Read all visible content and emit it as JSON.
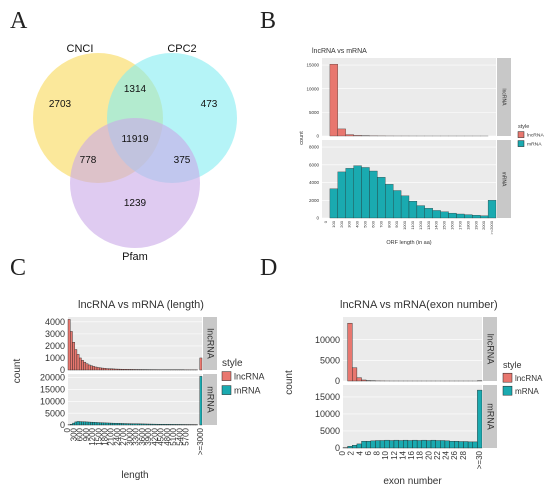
{
  "panel_labels": {
    "a": "A",
    "b": "B",
    "c": "C",
    "d": "D"
  },
  "chart_data": [
    {
      "type": "venn",
      "sets": [
        {
          "name": "CNCI",
          "color": "#f9e07a"
        },
        {
          "name": "CPC2",
          "color": "#84ecf2"
        },
        {
          "name": "Pfam",
          "color": "#c9a8e8"
        }
      ],
      "regions": {
        "cnci_only": "2703",
        "cpc2_only": "473",
        "pfam_only": "1239",
        "cnci_cpc2": "1314",
        "cnci_pfam": "778",
        "cpc2_pfam": "375",
        "all": "11919"
      }
    },
    {
      "type": "bar",
      "title": "lncRNA vs mRNA",
      "xlabel": "ORF length (in aa)",
      "ylabel": "count",
      "x": [
        "0",
        "100",
        "200",
        "300",
        "400",
        "500",
        "600",
        "700",
        "800",
        "900",
        "1000",
        "1100",
        "1200",
        "1300",
        "1400",
        "1500",
        "1600",
        "1700",
        "1800",
        "1900",
        "2000",
        ">=2000"
      ],
      "series": [
        {
          "name": "lncRNA",
          "color": "#e8776f",
          "values": [
            0,
            15200,
            1500,
            300,
            120,
            60,
            30,
            20,
            10,
            5,
            5,
            3,
            2,
            2,
            1,
            1,
            1,
            1,
            1,
            1,
            1,
            0
          ],
          "ylim": [
            0,
            16500
          ],
          "yticks": [
            "0",
            "5000",
            "10000",
            "15000"
          ]
        },
        {
          "name": "mRNA",
          "color": "#1aaab0",
          "values": [
            0,
            3300,
            5200,
            5600,
            5900,
            5700,
            5300,
            4600,
            3800,
            3100,
            2500,
            1900,
            1400,
            1100,
            850,
            700,
            550,
            450,
            380,
            320,
            250,
            2000
          ],
          "ylim": [
            0,
            8800
          ],
          "yticks": [
            "0",
            "2000",
            "4000",
            "6000",
            "8000"
          ]
        }
      ],
      "legend": {
        "title": "style",
        "items": [
          "lncRNA",
          "mRNA"
        ]
      },
      "facets": [
        "lncRNA",
        "mRNA"
      ]
    },
    {
      "type": "bar",
      "title": "lncRNA vs mRNA (length)",
      "xlabel": "length",
      "ylabel": "count",
      "x_ticks": [
        "0",
        "300",
        "600",
        "900",
        "1200",
        "1500",
        "1800",
        "2100",
        "2400",
        "2700",
        "3000",
        "3300",
        "3600",
        "3900",
        "4200",
        "4500",
        "4800",
        "5100",
        "5400",
        "5700",
        ">=3000"
      ],
      "bins": 60,
      "series": [
        {
          "name": "lncRNA",
          "color": "#e8776f",
          "values": [
            4200,
            3200,
            2300,
            1700,
            1300,
            1000,
            800,
            650,
            520,
            420,
            350,
            300,
            250,
            210,
            180,
            160,
            140,
            120,
            110,
            100,
            90,
            80,
            75,
            70,
            65,
            60,
            55,
            50,
            48,
            45,
            42,
            40,
            38,
            36,
            34,
            32,
            30,
            29,
            28,
            27,
            26,
            25,
            24,
            23,
            22,
            21,
            20,
            20,
            19,
            18,
            18,
            17,
            16,
            16,
            15,
            15,
            14,
            14,
            0,
            1000
          ],
          "ylim": [
            0,
            4400
          ],
          "yticks": [
            "0",
            "1000",
            "2000",
            "3000",
            "4000"
          ]
        },
        {
          "name": "mRNA",
          "color": "#1aaab0",
          "values": [
            100,
            300,
            800,
            1300,
            1500,
            1450,
            1400,
            1350,
            1300,
            1250,
            1200,
            1150,
            1100,
            1050,
            1000,
            950,
            900,
            870,
            840,
            800,
            770,
            740,
            710,
            680,
            650,
            620,
            600,
            580,
            560,
            540,
            520,
            500,
            480,
            460,
            440,
            420,
            400,
            385,
            370,
            355,
            340,
            325,
            310,
            300,
            290,
            280,
            270,
            260,
            250,
            240,
            230,
            220,
            210,
            200,
            190,
            180,
            170,
            160,
            0,
            20500
          ],
          "ylim": [
            0,
            21500
          ],
          "yticks": [
            "0",
            "5000",
            "10000",
            "15000",
            "20000"
          ]
        }
      ],
      "legend": {
        "title": "style",
        "items": [
          "lncRNA",
          "mRNA"
        ]
      },
      "facets": [
        "lncRNA",
        "mRNA"
      ]
    },
    {
      "type": "bar",
      "title": "lncRNA vs mRNA(exon number)",
      "xlabel": "exon number",
      "ylabel": "count",
      "x_ticks": [
        "0",
        "2",
        "4",
        "6",
        "8",
        "10",
        "12",
        "14",
        "16",
        "18",
        "20",
        "22",
        "24",
        "26",
        "28",
        ">=30"
      ],
      "x": [
        "1",
        "2",
        "3",
        "4",
        "5",
        "6",
        "7",
        "8",
        "9",
        "10",
        "11",
        "12",
        "13",
        "14",
        "15",
        "16",
        "17",
        "18",
        "19",
        "20",
        "21",
        "22",
        "23",
        "24",
        "25",
        "26",
        "27",
        "28",
        "29",
        ">=30"
      ],
      "series": [
        {
          "name": "lncRNA",
          "color": "#e8776f",
          "values": [
            0,
            14000,
            3200,
            800,
            250,
            100,
            50,
            30,
            20,
            10,
            5,
            5,
            3,
            3,
            2,
            2,
            1,
            1,
            1,
            1,
            1,
            1,
            1,
            1,
            1,
            1,
            1,
            1,
            1,
            50
          ],
          "ylim": [
            0,
            15500
          ],
          "yticks": [
            "0",
            "5000",
            "10000"
          ]
        },
        {
          "name": "mRNA",
          "color": "#1aaab0",
          "values": [
            100,
            500,
            800,
            1200,
            2000,
            2000,
            2100,
            2200,
            2200,
            2300,
            2200,
            2300,
            2200,
            2300,
            2200,
            2300,
            2200,
            2300,
            2200,
            2300,
            2200,
            2200,
            2100,
            2000,
            2000,
            1900,
            1900,
            1800,
            1800,
            17000
          ],
          "ylim": [
            0,
            18500
          ],
          "yticks": [
            "0",
            "5000",
            "10000",
            "15000"
          ]
        }
      ],
      "legend": {
        "title": "style",
        "items": [
          "lncRNA",
          "mRNA"
        ]
      },
      "facets": [
        "lncRNA",
        "mRNA"
      ]
    }
  ]
}
